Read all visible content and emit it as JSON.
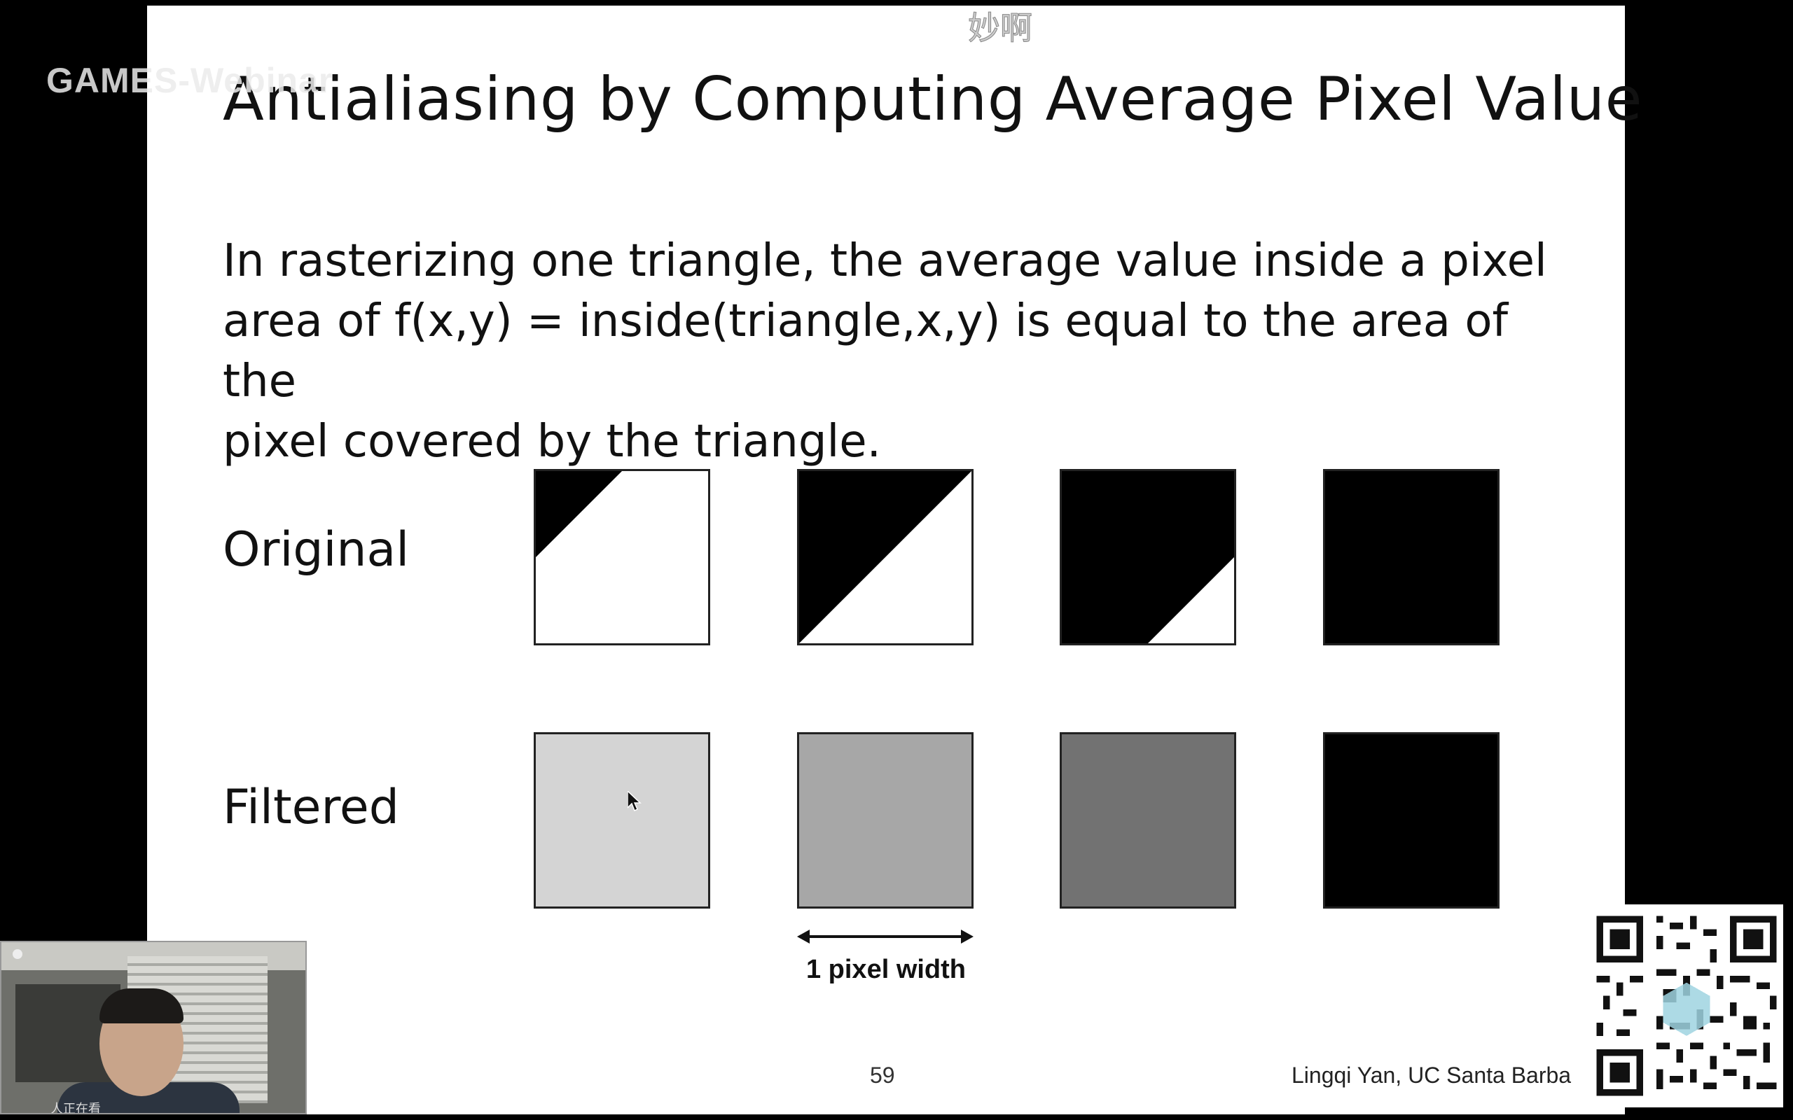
{
  "overlay": {
    "watermark": "GAMES-Webinar",
    "danmaku": "妙啊",
    "viewer_count": "人正在看"
  },
  "slide": {
    "title": "Antialiasing by Computing Average Pixel Value",
    "body": "In rasterizing one triangle, the average value inside a pixel\narea of f(x,y) = inside(triangle,x,y) is equal to the area of the\npixel covered by the triangle.",
    "rows": [
      {
        "label": "Original"
      },
      {
        "label": "Filtered"
      }
    ],
    "filtered_shades": [
      "#d4d4d4",
      "#a7a7a7",
      "#727272",
      "#000000"
    ],
    "arrow_label": "1 pixel width",
    "page_number": "59",
    "author": "Lingqi Yan, UC Santa Barba"
  }
}
